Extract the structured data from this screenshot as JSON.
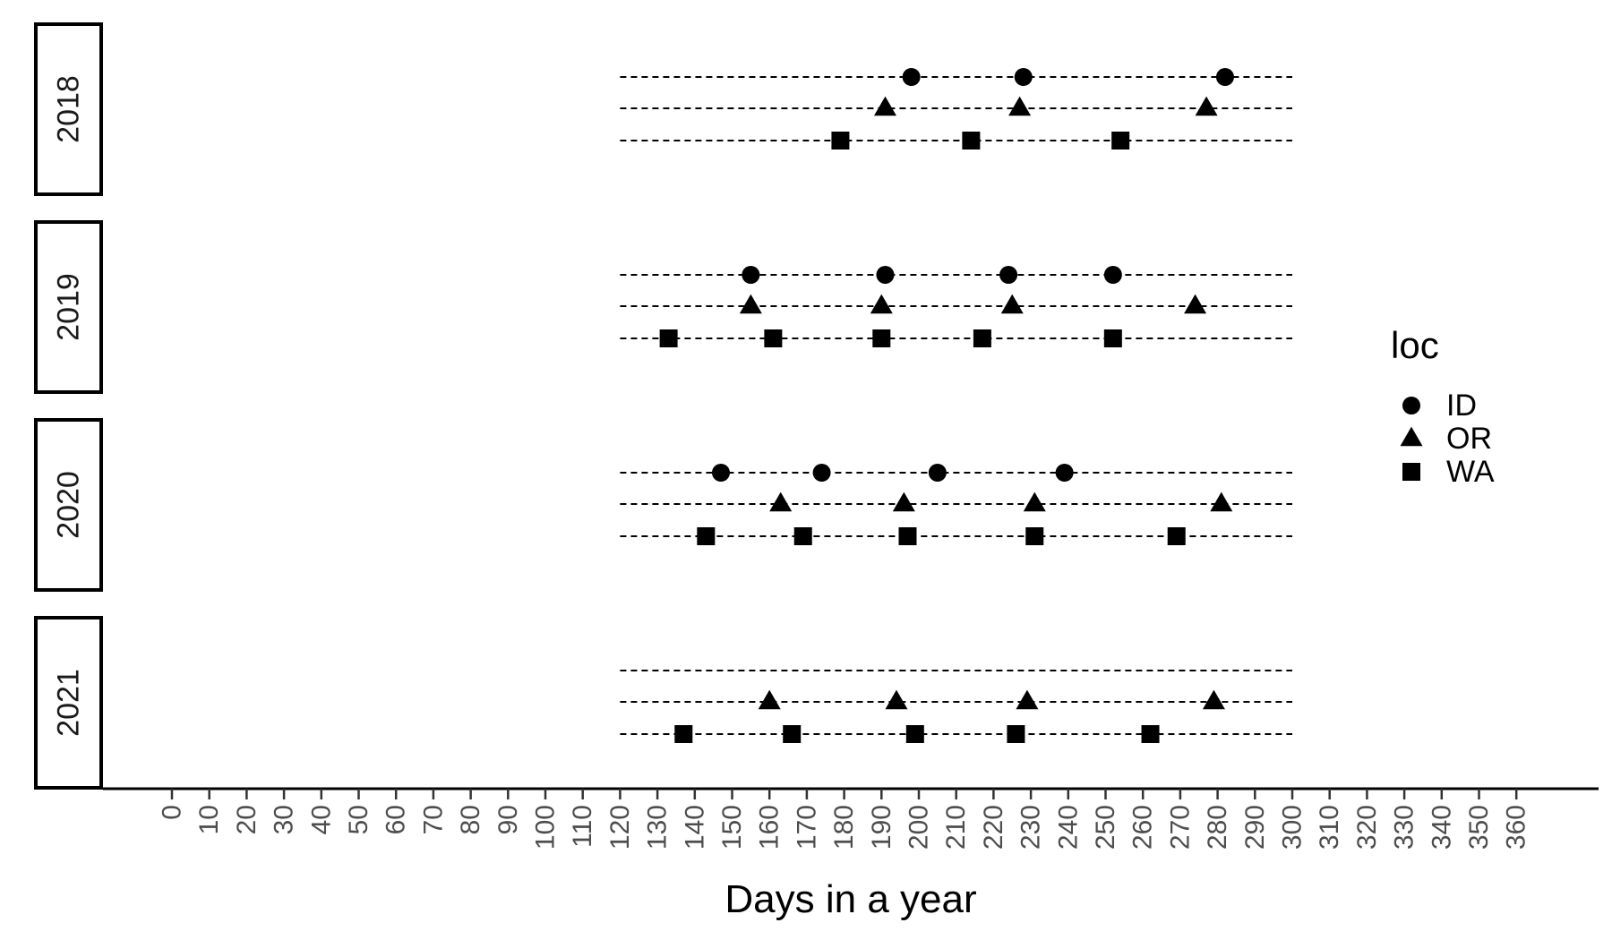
{
  "chart_data": {
    "type": "scatter",
    "xlabel": "Days in a year",
    "ylabel": "",
    "xlim": [
      0,
      360
    ],
    "x_ticks": [
      0,
      10,
      20,
      30,
      40,
      50,
      60,
      70,
      80,
      90,
      100,
      110,
      120,
      130,
      140,
      150,
      160,
      170,
      180,
      190,
      200,
      210,
      220,
      230,
      240,
      250,
      260,
      270,
      280,
      290,
      300,
      310,
      320,
      330,
      340,
      350,
      360
    ],
    "facet_variable": "year",
    "facets": [
      "2018",
      "2019",
      "2020",
      "2021"
    ],
    "line_range": [
      120,
      300
    ],
    "legend": {
      "title": "loc",
      "position": "right",
      "entries": [
        {
          "label": "ID",
          "shape": "circle"
        },
        {
          "label": "OR",
          "shape": "triangle"
        },
        {
          "label": "WA",
          "shape": "square"
        }
      ]
    },
    "series": [
      {
        "facet": "2018",
        "name": "ID",
        "x": [
          198,
          228,
          282
        ]
      },
      {
        "facet": "2018",
        "name": "OR",
        "x": [
          191,
          227,
          277
        ]
      },
      {
        "facet": "2018",
        "name": "WA",
        "x": [
          179,
          214,
          254
        ]
      },
      {
        "facet": "2019",
        "name": "ID",
        "x": [
          155,
          191,
          224,
          252
        ]
      },
      {
        "facet": "2019",
        "name": "OR",
        "x": [
          155,
          190,
          225,
          274
        ]
      },
      {
        "facet": "2019",
        "name": "WA",
        "x": [
          133,
          161,
          190,
          217,
          252
        ]
      },
      {
        "facet": "2020",
        "name": "ID",
        "x": [
          147,
          174,
          205,
          239
        ]
      },
      {
        "facet": "2020",
        "name": "OR",
        "x": [
          163,
          196,
          231,
          281
        ]
      },
      {
        "facet": "2020",
        "name": "WA",
        "x": [
          143,
          169,
          197,
          231,
          269
        ]
      },
      {
        "facet": "2021",
        "name": "ID",
        "x": []
      },
      {
        "facet": "2021",
        "name": "OR",
        "x": [
          160,
          194,
          229,
          279
        ]
      },
      {
        "facet": "2021",
        "name": "WA",
        "x": [
          137,
          166,
          199,
          226,
          262
        ]
      }
    ]
  }
}
